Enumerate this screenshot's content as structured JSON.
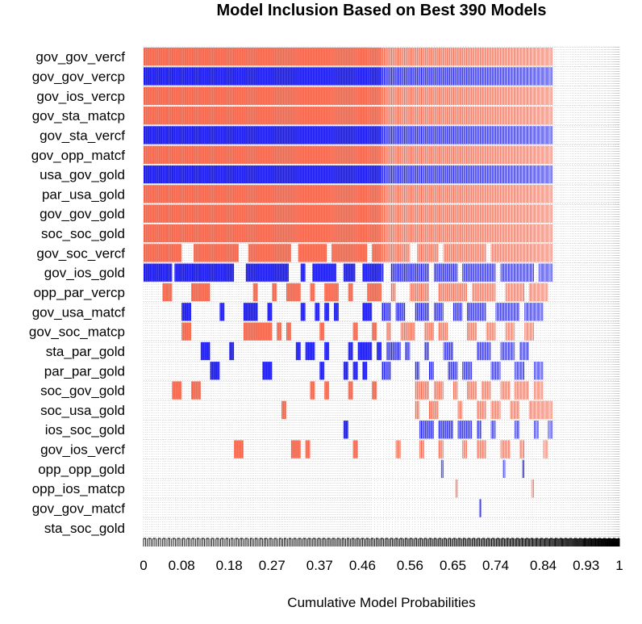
{
  "chart_data": {
    "type": "heatmap",
    "title": "Model Inclusion Based on Best  390  Models",
    "xlabel": "Cumulative Model Probabilities",
    "ylabel": "",
    "xlim": [
      0,
      1
    ],
    "x_tick_labels": [
      "0",
      "0.08",
      "0.18",
      "0.27",
      "0.37",
      "0.46",
      "0.56",
      "0.65",
      "0.74",
      "0.84",
      "0.93",
      "1"
    ],
    "x_tick_values": [
      0,
      0.08,
      0.18,
      0.27,
      0.37,
      0.46,
      0.56,
      0.65,
      0.74,
      0.84,
      0.93,
      1
    ],
    "n_models": 390,
    "cumulative_probability_of_displayed_models": 0.86,
    "colors": {
      "positive": "#f5674d",
      "negative": "#1c1cf0",
      "grid": "#bfbfbf",
      "background": "#ffffff"
    },
    "variables": [
      {
        "name": "gov_gov_vercf",
        "color": "positive",
        "inclusion": [
          [
            0,
            0.86
          ]
        ]
      },
      {
        "name": "gov_gov_vercp",
        "color": "negative",
        "inclusion": [
          [
            0,
            0.86
          ]
        ]
      },
      {
        "name": "gov_ios_vercp",
        "color": "positive",
        "inclusion": [
          [
            0,
            0.86
          ]
        ]
      },
      {
        "name": "gov_sta_matcp",
        "color": "positive",
        "inclusion": [
          [
            0,
            0.86
          ]
        ]
      },
      {
        "name": "gov_sta_vercf",
        "color": "negative",
        "inclusion": [
          [
            0,
            0.86
          ]
        ]
      },
      {
        "name": "gov_opp_matcf",
        "color": "positive",
        "inclusion": [
          [
            0,
            0.86
          ]
        ]
      },
      {
        "name": "usa_gov_gold",
        "color": "negative",
        "inclusion": [
          [
            0,
            0.86
          ]
        ]
      },
      {
        "name": "par_usa_gold",
        "color": "positive",
        "inclusion": [
          [
            0,
            0.86
          ]
        ]
      },
      {
        "name": "gov_gov_gold",
        "color": "positive",
        "inclusion": [
          [
            0,
            0.86
          ]
        ]
      },
      {
        "name": "soc_soc_gold",
        "color": "positive",
        "inclusion": [
          [
            0,
            0.86
          ]
        ]
      },
      {
        "name": "gov_soc_vercf",
        "color": "positive",
        "inclusion": [
          [
            0,
            0.08
          ],
          [
            0.105,
            0.2
          ],
          [
            0.22,
            0.31
          ],
          [
            0.325,
            0.385
          ],
          [
            0.395,
            0.47
          ],
          [
            0.48,
            0.56
          ],
          [
            0.575,
            0.62
          ],
          [
            0.63,
            0.72
          ],
          [
            0.73,
            0.86
          ]
        ]
      },
      {
        "name": "gov_ios_gold",
        "color": "negative",
        "inclusion": [
          [
            0,
            0.06
          ],
          [
            0.065,
            0.19
          ],
          [
            0.215,
            0.305
          ],
          [
            0.33,
            0.34
          ],
          [
            0.355,
            0.405
          ],
          [
            0.42,
            0.445
          ],
          [
            0.46,
            0.505
          ],
          [
            0.52,
            0.6
          ],
          [
            0.61,
            0.66
          ],
          [
            0.67,
            0.74
          ],
          [
            0.75,
            0.82
          ],
          [
            0.83,
            0.86
          ]
        ]
      },
      {
        "name": "opp_par_vercp",
        "color": "positive",
        "inclusion": [
          [
            0.04,
            0.06
          ],
          [
            0.1,
            0.14
          ],
          [
            0.23,
            0.24
          ],
          [
            0.27,
            0.28
          ],
          [
            0.3,
            0.33
          ],
          [
            0.35,
            0.36
          ],
          [
            0.38,
            0.41
          ],
          [
            0.43,
            0.44
          ],
          [
            0.47,
            0.5
          ],
          [
            0.52,
            0.53
          ],
          [
            0.56,
            0.6
          ],
          [
            0.62,
            0.68
          ],
          [
            0.69,
            0.74
          ],
          [
            0.76,
            0.8
          ],
          [
            0.81,
            0.85
          ]
        ]
      },
      {
        "name": "gov_usa_matcf",
        "color": "negative",
        "inclusion": [
          [
            0.08,
            0.1
          ],
          [
            0.16,
            0.17
          ],
          [
            0.21,
            0.24
          ],
          [
            0.26,
            0.27
          ],
          [
            0.33,
            0.34
          ],
          [
            0.36,
            0.37
          ],
          [
            0.38,
            0.39
          ],
          [
            0.4,
            0.41
          ],
          [
            0.46,
            0.48
          ],
          [
            0.5,
            0.52
          ],
          [
            0.53,
            0.55
          ],
          [
            0.57,
            0.6
          ],
          [
            0.61,
            0.63
          ],
          [
            0.65,
            0.67
          ],
          [
            0.68,
            0.72
          ],
          [
            0.74,
            0.79
          ],
          [
            0.8,
            0.84
          ]
        ]
      },
      {
        "name": "gov_soc_matcp",
        "color": "positive",
        "inclusion": [
          [
            0.08,
            0.1
          ],
          [
            0.21,
            0.27
          ],
          [
            0.28,
            0.29
          ],
          [
            0.3,
            0.31
          ],
          [
            0.37,
            0.38
          ],
          [
            0.44,
            0.45
          ],
          [
            0.48,
            0.49
          ],
          [
            0.51,
            0.52
          ],
          [
            0.54,
            0.57
          ],
          [
            0.59,
            0.61
          ],
          [
            0.62,
            0.64
          ],
          [
            0.68,
            0.7
          ],
          [
            0.72,
            0.74
          ],
          [
            0.76,
            0.78
          ],
          [
            0.8,
            0.82
          ]
        ]
      },
      {
        "name": "sta_par_gold",
        "color": "negative",
        "inclusion": [
          [
            0.12,
            0.14
          ],
          [
            0.18,
            0.19
          ],
          [
            0.32,
            0.33
          ],
          [
            0.34,
            0.36
          ],
          [
            0.38,
            0.39
          ],
          [
            0.43,
            0.44
          ],
          [
            0.45,
            0.48
          ],
          [
            0.49,
            0.5
          ],
          [
            0.51,
            0.54
          ],
          [
            0.55,
            0.56
          ],
          [
            0.59,
            0.6
          ],
          [
            0.63,
            0.65
          ],
          [
            0.7,
            0.73
          ],
          [
            0.75,
            0.78
          ],
          [
            0.79,
            0.81
          ]
        ]
      },
      {
        "name": "par_par_gold",
        "color": "negative",
        "inclusion": [
          [
            0.14,
            0.16
          ],
          [
            0.25,
            0.27
          ],
          [
            0.37,
            0.38
          ],
          [
            0.42,
            0.43
          ],
          [
            0.44,
            0.45
          ],
          [
            0.46,
            0.47
          ],
          [
            0.5,
            0.52
          ],
          [
            0.57,
            0.58
          ],
          [
            0.6,
            0.61
          ],
          [
            0.64,
            0.66
          ],
          [
            0.67,
            0.69
          ],
          [
            0.73,
            0.75
          ],
          [
            0.78,
            0.8
          ],
          [
            0.82,
            0.84
          ]
        ]
      },
      {
        "name": "soc_gov_gold",
        "color": "positive",
        "inclusion": [
          [
            0.06,
            0.08
          ],
          [
            0.1,
            0.12
          ],
          [
            0.35,
            0.36
          ],
          [
            0.38,
            0.39
          ],
          [
            0.43,
            0.44
          ],
          [
            0.48,
            0.49
          ],
          [
            0.57,
            0.6
          ],
          [
            0.61,
            0.63
          ],
          [
            0.65,
            0.66
          ],
          [
            0.68,
            0.7
          ],
          [
            0.71,
            0.73
          ],
          [
            0.75,
            0.77
          ],
          [
            0.78,
            0.81
          ],
          [
            0.82,
            0.84
          ]
        ]
      },
      {
        "name": "soc_usa_gold",
        "color": "positive",
        "inclusion": [
          [
            0.29,
            0.3
          ],
          [
            0.57,
            0.58
          ],
          [
            0.6,
            0.62
          ],
          [
            0.66,
            0.67
          ],
          [
            0.7,
            0.72
          ],
          [
            0.73,
            0.75
          ],
          [
            0.77,
            0.79
          ],
          [
            0.81,
            0.86
          ]
        ]
      },
      {
        "name": "ios_soc_gold",
        "color": "negative",
        "inclusion": [
          [
            0.42,
            0.43
          ],
          [
            0.58,
            0.61
          ],
          [
            0.62,
            0.65
          ],
          [
            0.66,
            0.69
          ],
          [
            0.7,
            0.71
          ],
          [
            0.73,
            0.74
          ],
          [
            0.78,
            0.79
          ],
          [
            0.82,
            0.83
          ],
          [
            0.85,
            0.86
          ]
        ]
      },
      {
        "name": "gov_ios_vercf",
        "color": "positive",
        "inclusion": [
          [
            0.19,
            0.21
          ],
          [
            0.31,
            0.33
          ],
          [
            0.34,
            0.35
          ],
          [
            0.44,
            0.45
          ],
          [
            0.53,
            0.54
          ],
          [
            0.58,
            0.59
          ],
          [
            0.62,
            0.63
          ],
          [
            0.67,
            0.68
          ],
          [
            0.7,
            0.72
          ],
          [
            0.75,
            0.77
          ],
          [
            0.79,
            0.8
          ],
          [
            0.84,
            0.85
          ]
        ]
      },
      {
        "name": "opp_opp_gold",
        "color": "negative",
        "inclusion": [
          [
            0.625,
            0.63
          ],
          [
            0.755,
            0.76
          ],
          [
            0.795,
            0.8
          ]
        ]
      },
      {
        "name": "opp_ios_matcp",
        "color": "positive",
        "inclusion": [
          [
            0.655,
            0.66
          ],
          [
            0.815,
            0.82
          ]
        ]
      },
      {
        "name": "gov_gov_matcf",
        "color": "negative",
        "inclusion": [
          [
            0.705,
            0.71
          ]
        ]
      },
      {
        "name": "sta_soc_gold",
        "color": "positive",
        "inclusion": []
      }
    ]
  }
}
